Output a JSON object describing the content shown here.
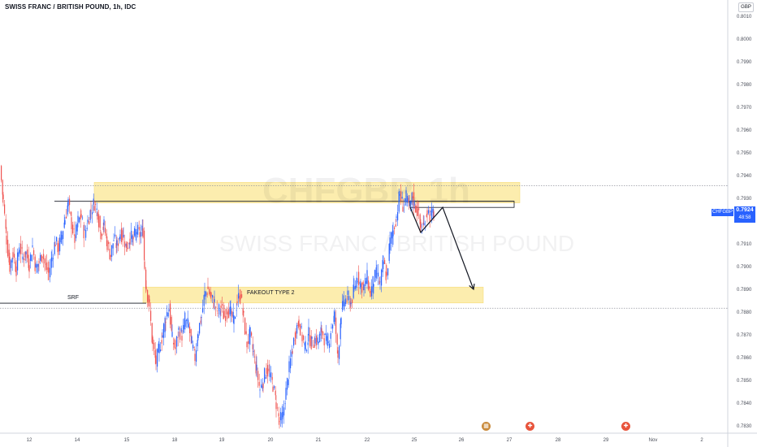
{
  "header": {
    "title": "SWISS FRANC / BRITISH POUND, 1h, IDC",
    "currency": "GBP"
  },
  "watermark": {
    "symbol": "CHFGBP, 1h",
    "name": "SWISS FRANC / BRITISH POUND"
  },
  "price_tag": {
    "symbol": "CHFGBP",
    "price": "0.7924",
    "countdown": "48:58",
    "color": "#2962ff"
  },
  "annotations": {
    "srf": "SRF",
    "fakeout": "FAKEOUT TYPE 2"
  },
  "colors": {
    "up": "#2962ff",
    "down": "#ef5350",
    "zone": "#fbeaa0"
  },
  "events": [
    "calendar-event-icon",
    "earnings-icon",
    "earnings-icon"
  ],
  "chart_data": {
    "type": "candlestick",
    "title": "SWISS FRANC / BRITISH POUND, 1h, IDC",
    "x_ticks": [
      "12",
      "14",
      "15",
      "18",
      "19",
      "20",
      "21",
      "22",
      "25",
      "26",
      "27",
      "28",
      "29",
      "Nov",
      "2"
    ],
    "y_ticks": [
      "0.8010",
      "0.8000",
      "0.7990",
      "0.7980",
      "0.7970",
      "0.7960",
      "0.7950",
      "0.7940",
      "0.7930",
      "0.7920",
      "0.7910",
      "0.7900",
      "0.7890",
      "0.7880",
      "0.7870",
      "0.7860",
      "0.7850",
      "0.7840",
      "0.7830"
    ],
    "ylim": [
      0.78275,
      0.80155
    ],
    "last_price": 0.7924,
    "price_path": [
      [
        0,
        0.7944
      ],
      [
        4,
        0.7929
      ],
      [
        8,
        0.7912
      ],
      [
        12,
        0.79
      ],
      [
        16,
        0.7906
      ],
      [
        20,
        0.7899
      ],
      [
        24,
        0.7909
      ],
      [
        28,
        0.7904
      ],
      [
        32,
        0.7906
      ],
      [
        36,
        0.7901
      ],
      [
        40,
        0.7909
      ],
      [
        44,
        0.7899
      ],
      [
        48,
        0.7902
      ],
      [
        52,
        0.7906
      ],
      [
        56,
        0.79
      ],
      [
        60,
        0.7897
      ],
      [
        64,
        0.7904
      ],
      [
        68,
        0.7911
      ],
      [
        72,
        0.7908
      ],
      [
        76,
        0.7914
      ],
      [
        80,
        0.7921
      ],
      [
        84,
        0.7928
      ],
      [
        88,
        0.7919
      ],
      [
        92,
        0.7912
      ],
      [
        96,
        0.792
      ],
      [
        100,
        0.7922
      ],
      [
        104,
        0.7914
      ],
      [
        108,
        0.792
      ],
      [
        112,
        0.7925
      ],
      [
        116,
        0.7928
      ],
      [
        120,
        0.7924
      ],
      [
        124,
        0.7915
      ],
      [
        128,
        0.7918
      ],
      [
        132,
        0.791
      ],
      [
        136,
        0.7905
      ],
      [
        140,
        0.7912
      ],
      [
        144,
        0.7909
      ],
      [
        148,
        0.7915
      ],
      [
        152,
        0.7913
      ],
      [
        156,
        0.7908
      ],
      [
        160,
        0.7913
      ],
      [
        164,
        0.7912
      ],
      [
        168,
        0.7916
      ],
      [
        172,
        0.7914
      ],
      [
        176,
        0.7916
      ],
      [
        178,
        0.79
      ],
      [
        180,
        0.7891
      ],
      [
        184,
        0.7882
      ],
      [
        188,
        0.7865
      ],
      [
        192,
        0.7858
      ],
      [
        196,
        0.7864
      ],
      [
        200,
        0.787
      ],
      [
        204,
        0.7878
      ],
      [
        208,
        0.7882
      ],
      [
        212,
        0.7868
      ],
      [
        216,
        0.7864
      ],
      [
        220,
        0.7872
      ],
      [
        224,
        0.787
      ],
      [
        228,
        0.7876
      ],
      [
        232,
        0.7874
      ],
      [
        236,
        0.7866
      ],
      [
        240,
        0.786
      ],
      [
        244,
        0.7872
      ],
      [
        248,
        0.7878
      ],
      [
        252,
        0.7888
      ],
      [
        256,
        0.789
      ],
      [
        260,
        0.7886
      ],
      [
        264,
        0.7884
      ],
      [
        268,
        0.788
      ],
      [
        272,
        0.7882
      ],
      [
        276,
        0.7878
      ],
      [
        280,
        0.7882
      ],
      [
        284,
        0.7879
      ],
      [
        288,
        0.7876
      ],
      [
        292,
        0.7885
      ],
      [
        296,
        0.7888
      ],
      [
        300,
        0.7877
      ],
      [
        304,
        0.7866
      ],
      [
        308,
        0.787
      ],
      [
        312,
        0.7862
      ],
      [
        316,
        0.7854
      ],
      [
        320,
        0.7846
      ],
      [
        324,
        0.785
      ],
      [
        328,
        0.7855
      ],
      [
        332,
        0.7852
      ],
      [
        336,
        0.7848
      ],
      [
        340,
        0.784
      ],
      [
        344,
        0.7832
      ],
      [
        348,
        0.7834
      ],
      [
        352,
        0.7845
      ],
      [
        356,
        0.7855
      ],
      [
        360,
        0.7864
      ],
      [
        364,
        0.7872
      ],
      [
        368,
        0.7876
      ],
      [
        372,
        0.7869
      ],
      [
        376,
        0.7864
      ],
      [
        380,
        0.787
      ],
      [
        384,
        0.7866
      ],
      [
        388,
        0.7868
      ],
      [
        392,
        0.7867
      ],
      [
        396,
        0.7872
      ],
      [
        400,
        0.7868
      ],
      [
        404,
        0.7866
      ],
      [
        408,
        0.7874
      ],
      [
        412,
        0.7878
      ],
      [
        416,
        0.786
      ],
      [
        420,
        0.788
      ],
      [
        424,
        0.7885
      ],
      [
        428,
        0.7886
      ],
      [
        432,
        0.7884
      ],
      [
        436,
        0.789
      ],
      [
        440,
        0.7896
      ],
      [
        444,
        0.7892
      ],
      [
        448,
        0.7891
      ],
      [
        452,
        0.7895
      ],
      [
        456,
        0.7888
      ],
      [
        460,
        0.7894
      ],
      [
        464,
        0.7897
      ],
      [
        468,
        0.7892
      ],
      [
        472,
        0.7902
      ],
      [
        476,
        0.7895
      ],
      [
        480,
        0.7911
      ],
      [
        484,
        0.7916
      ],
      [
        488,
        0.7922
      ],
      [
        492,
        0.7932
      ],
      [
        496,
        0.7927
      ],
      [
        500,
        0.793
      ],
      [
        504,
        0.7926
      ],
      [
        508,
        0.7931
      ],
      [
        510,
        0.7927
      ],
      [
        514,
        0.7925
      ],
      [
        518,
        0.7917
      ],
      [
        522,
        0.7918
      ],
      [
        526,
        0.7925
      ],
      [
        530,
        0.7922
      ],
      [
        534,
        0.7924
      ]
    ],
    "zones": [
      {
        "x_from": 116,
        "x_to": 640,
        "y_from": 0.7928,
        "y_to": 0.7937
      },
      {
        "x_from": 176,
        "x_to": 595,
        "y_from": 0.7884,
        "y_to": 0.7891
      }
    ],
    "levels": [
      {
        "y": 0.79355,
        "style": "dotted"
      },
      {
        "y": 0.78817,
        "style": "dotted"
      },
      {
        "y": 0.79287,
        "x_from": 67,
        "x_to": 633,
        "style": "solid"
      },
      {
        "y": 0.78839,
        "x_from": 0,
        "x_to": 180,
        "style": "solid"
      }
    ],
    "projection": [
      [
        505,
        0.7926
      ],
      [
        518,
        0.7915
      ],
      [
        545,
        0.7926
      ],
      [
        583,
        0.789
      ]
    ]
  }
}
